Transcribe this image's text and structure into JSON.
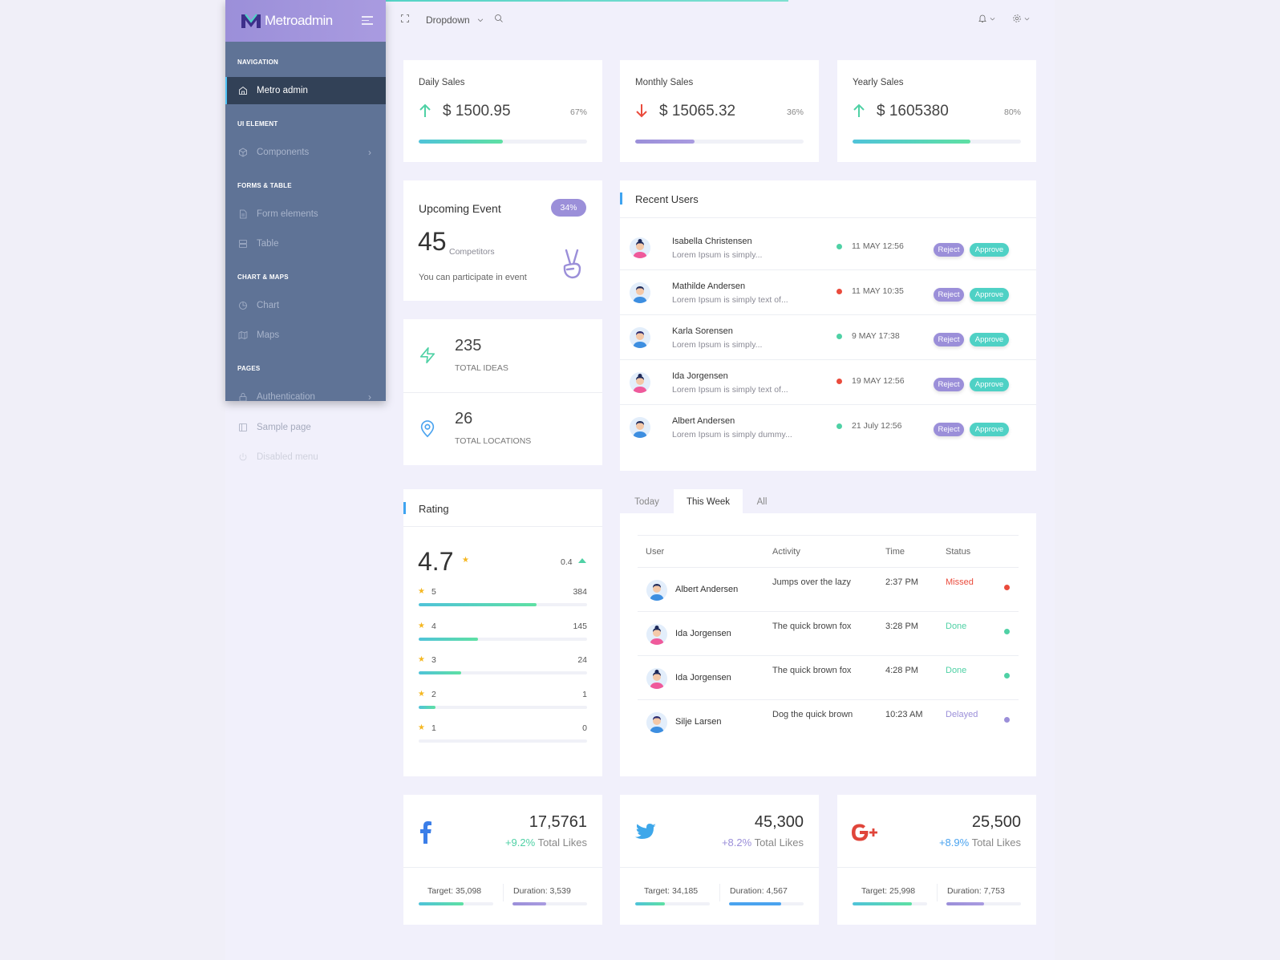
{
  "brand": {
    "name": "Metroadmin"
  },
  "sidebar": {
    "sections": [
      "NAVIGATION",
      "UI ELEMENT",
      "FORMS & TABLE",
      "CHART & MAPS",
      "PAGES"
    ],
    "items": [
      {
        "label": "Metro admin",
        "icon": "home-icon"
      },
      {
        "label": "Components",
        "icon": "box-icon"
      },
      {
        "label": "Form elements",
        "icon": "file-icon"
      },
      {
        "label": "Table",
        "icon": "server-icon"
      },
      {
        "label": "Chart",
        "icon": "pie-chart-icon"
      },
      {
        "label": "Maps",
        "icon": "map-icon"
      },
      {
        "label": "Authentication",
        "icon": "lock-icon"
      }
    ],
    "extra_items": [
      {
        "label": "Sample page",
        "icon": "sidebar-icon"
      },
      {
        "label": "Disabled menu",
        "icon": "power-icon"
      }
    ]
  },
  "header": {
    "dropdown_label": "Dropdown"
  },
  "sales": [
    {
      "title": "Daily Sales",
      "amount": "$ 1500.95",
      "percent": "67%",
      "progress": 0.5,
      "trend": "up"
    },
    {
      "title": "Monthly Sales",
      "amount": "$ 15065.32",
      "percent": "36%",
      "progress": 0.35,
      "trend": "down"
    },
    {
      "title": "Yearly Sales",
      "amount": "$ 1605380",
      "percent": "80%",
      "progress": 0.7,
      "trend": "up"
    }
  ],
  "event": {
    "title": "Upcoming Event",
    "badge": "34%",
    "count": "45",
    "count_label": "Competitors",
    "note": "You can participate in event"
  },
  "stats": [
    {
      "value": "235",
      "label": "TOTAL IDEAS",
      "icon": "zap-icon"
    },
    {
      "value": "26",
      "label": "TOTAL LOCATIONS",
      "icon": "map-pin-icon"
    }
  ],
  "recent_users": {
    "title": "Recent Users",
    "reject_label": "Reject",
    "approve_label": "Approve",
    "rows": [
      {
        "name": "Isabella Christensen",
        "desc": "Lorem Ipsum is simply...",
        "time": "11 MAY 12:56",
        "status_color": "#4fd1a5",
        "gender": "f"
      },
      {
        "name": "Mathilde Andersen",
        "desc": "Lorem Ipsum is simply text of...",
        "time": "11 MAY 10:35",
        "status_color": "#ea4b3c",
        "gender": "m"
      },
      {
        "name": "Karla Sorensen",
        "desc": "Lorem Ipsum is simply...",
        "time": "9 MAY 17:38",
        "status_color": "#4fd1a5",
        "gender": "d"
      },
      {
        "name": "Ida Jorgensen",
        "desc": "Lorem Ipsum is simply text of...",
        "time": "19 MAY 12:56",
        "status_color": "#ea4b3c",
        "gender": "f"
      },
      {
        "name": "Albert Andersen",
        "desc": "Lorem Ipsum is simply dummy...",
        "time": "21 July 12:56",
        "status_color": "#4fd1a5",
        "gender": "m"
      }
    ]
  },
  "rating": {
    "title": "Rating",
    "score": "4.7",
    "delta": "0.4",
    "rows": [
      {
        "stars": "5",
        "count": "384",
        "fraction": 0.7
      },
      {
        "stars": "4",
        "count": "145",
        "fraction": 0.35
      },
      {
        "stars": "3",
        "count": "24",
        "fraction": 0.25
      },
      {
        "stars": "2",
        "count": "1",
        "fraction": 0.1
      },
      {
        "stars": "1",
        "count": "0",
        "fraction": 0
      }
    ]
  },
  "activity": {
    "tabs": [
      "Today",
      "This Week",
      "All"
    ],
    "active_tab": "This Week",
    "columns": [
      "User",
      "Activity",
      "Time",
      "Status"
    ],
    "rows": [
      {
        "user": "Albert Andersen",
        "activity": "Jumps over the lazy",
        "time": "2:37 PM",
        "status": "Missed",
        "color": "#ea4b3c",
        "gender": "m"
      },
      {
        "user": "Ida Jorgensen",
        "activity": "The quick brown fox",
        "time": "3:28 PM",
        "status": "Done",
        "color": "#4fd1a5",
        "gender": "f"
      },
      {
        "user": "Ida Jorgensen",
        "activity": "The quick brown fox",
        "time": "4:28 PM",
        "status": "Done",
        "color": "#4fd1a5",
        "gender": "f"
      },
      {
        "user": "Silje Larsen",
        "activity": "Dog the quick brown",
        "time": "10:23 AM",
        "status": "Delayed",
        "color": "#9b8fd9",
        "gender": "d"
      }
    ]
  },
  "social": [
    {
      "network": "facebook",
      "icon": "facebook-icon",
      "color": "#3b7ee8",
      "total": "17,5761",
      "growth": "+9.2%",
      "growth_color": "#4fd1a5",
      "likes_label": "Total Likes",
      "target": "Target: 35,098",
      "duration": "Duration: 3,539",
      "target_progress": 0.6,
      "duration_progress": 0.45
    },
    {
      "network": "twitter",
      "icon": "twitter-icon",
      "color": "#3ea7ea",
      "total": "45,300",
      "growth": "+8.2%",
      "growth_color": "#9b8fd9",
      "likes_label": "Total Likes",
      "target": "Target: 34,185",
      "duration": "Duration: 4,567",
      "target_progress": 0.4,
      "duration_progress": 0.7
    },
    {
      "network": "google-plus",
      "icon": "google-plus-icon",
      "color": "#e0453a",
      "total": "25,500",
      "growth": "+8.9%",
      "growth_color": "#4aa3ef",
      "likes_label": "Total Likes",
      "target": "Target: 25,998",
      "duration": "Duration: 7,753",
      "target_progress": 0.8,
      "duration_progress": 0.5
    }
  ]
}
